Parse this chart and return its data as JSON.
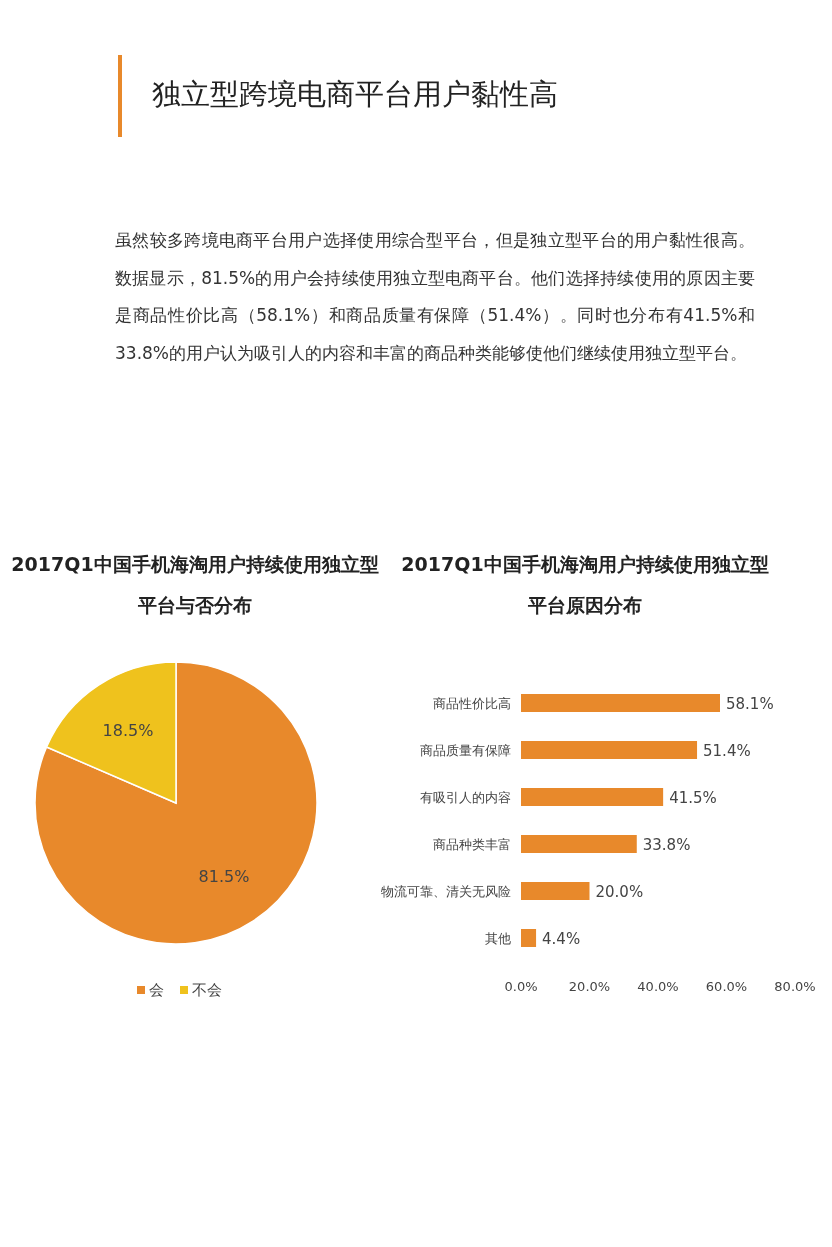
{
  "chart_data": [
    {
      "type": "other",
      "title": "独立型跨境电商平台用户黏性高",
      "annotations": [
        "虽然较多跨境电商平台用户选择使用综合型平台，但是独立型平台的用户黏性很高。数据显示，81.5%的用户会持续使用独立型电商平台。他们选择持续使用的原因主要是商品性价比高（58.1%）和商品质量有保障（51.4%）。同时也分布有41.5%和33.8%的用户认为吸引人的内容和丰富的商品种类能够使他们继续使用独立型平台。"
      ]
    },
    {
      "type": "pie",
      "title": "2017Q1中国手机海淘用户持续使用独立型平台与否分布",
      "categories": [
        "会",
        "不会"
      ],
      "values": [
        81.5,
        18.5
      ],
      "colors": [
        "#e8892b",
        "#efc21d"
      ],
      "value_labels": [
        "81.5%",
        "18.5%"
      ],
      "legend": "bottom"
    },
    {
      "type": "bar",
      "orientation": "horizontal",
      "title": "2017Q1中国手机海淘用户持续使用独立型平台原因分布",
      "categories": [
        "商品性价比高",
        "商品质量有保障",
        "有吸引人的内容",
        "商品种类丰富",
        "物流可靠、清关无风险",
        "其他"
      ],
      "values": [
        58.1,
        51.4,
        41.5,
        33.8,
        20.0,
        4.4
      ],
      "color": "#e8892b",
      "value_labels": [
        "58.1%",
        "51.4%",
        "41.5%",
        "33.8%",
        "20.0%",
        "4.4%"
      ],
      "xlim": [
        0,
        80
      ],
      "xticks": [
        {
          "value": 0,
          "label": "0.0%"
        },
        {
          "value": 20,
          "label": "20.0%"
        },
        {
          "value": 40,
          "label": "40.0%"
        },
        {
          "value": 60,
          "label": "60.0%"
        },
        {
          "value": 80,
          "label": "80.0%"
        }
      ],
      "grid": false
    }
  ]
}
